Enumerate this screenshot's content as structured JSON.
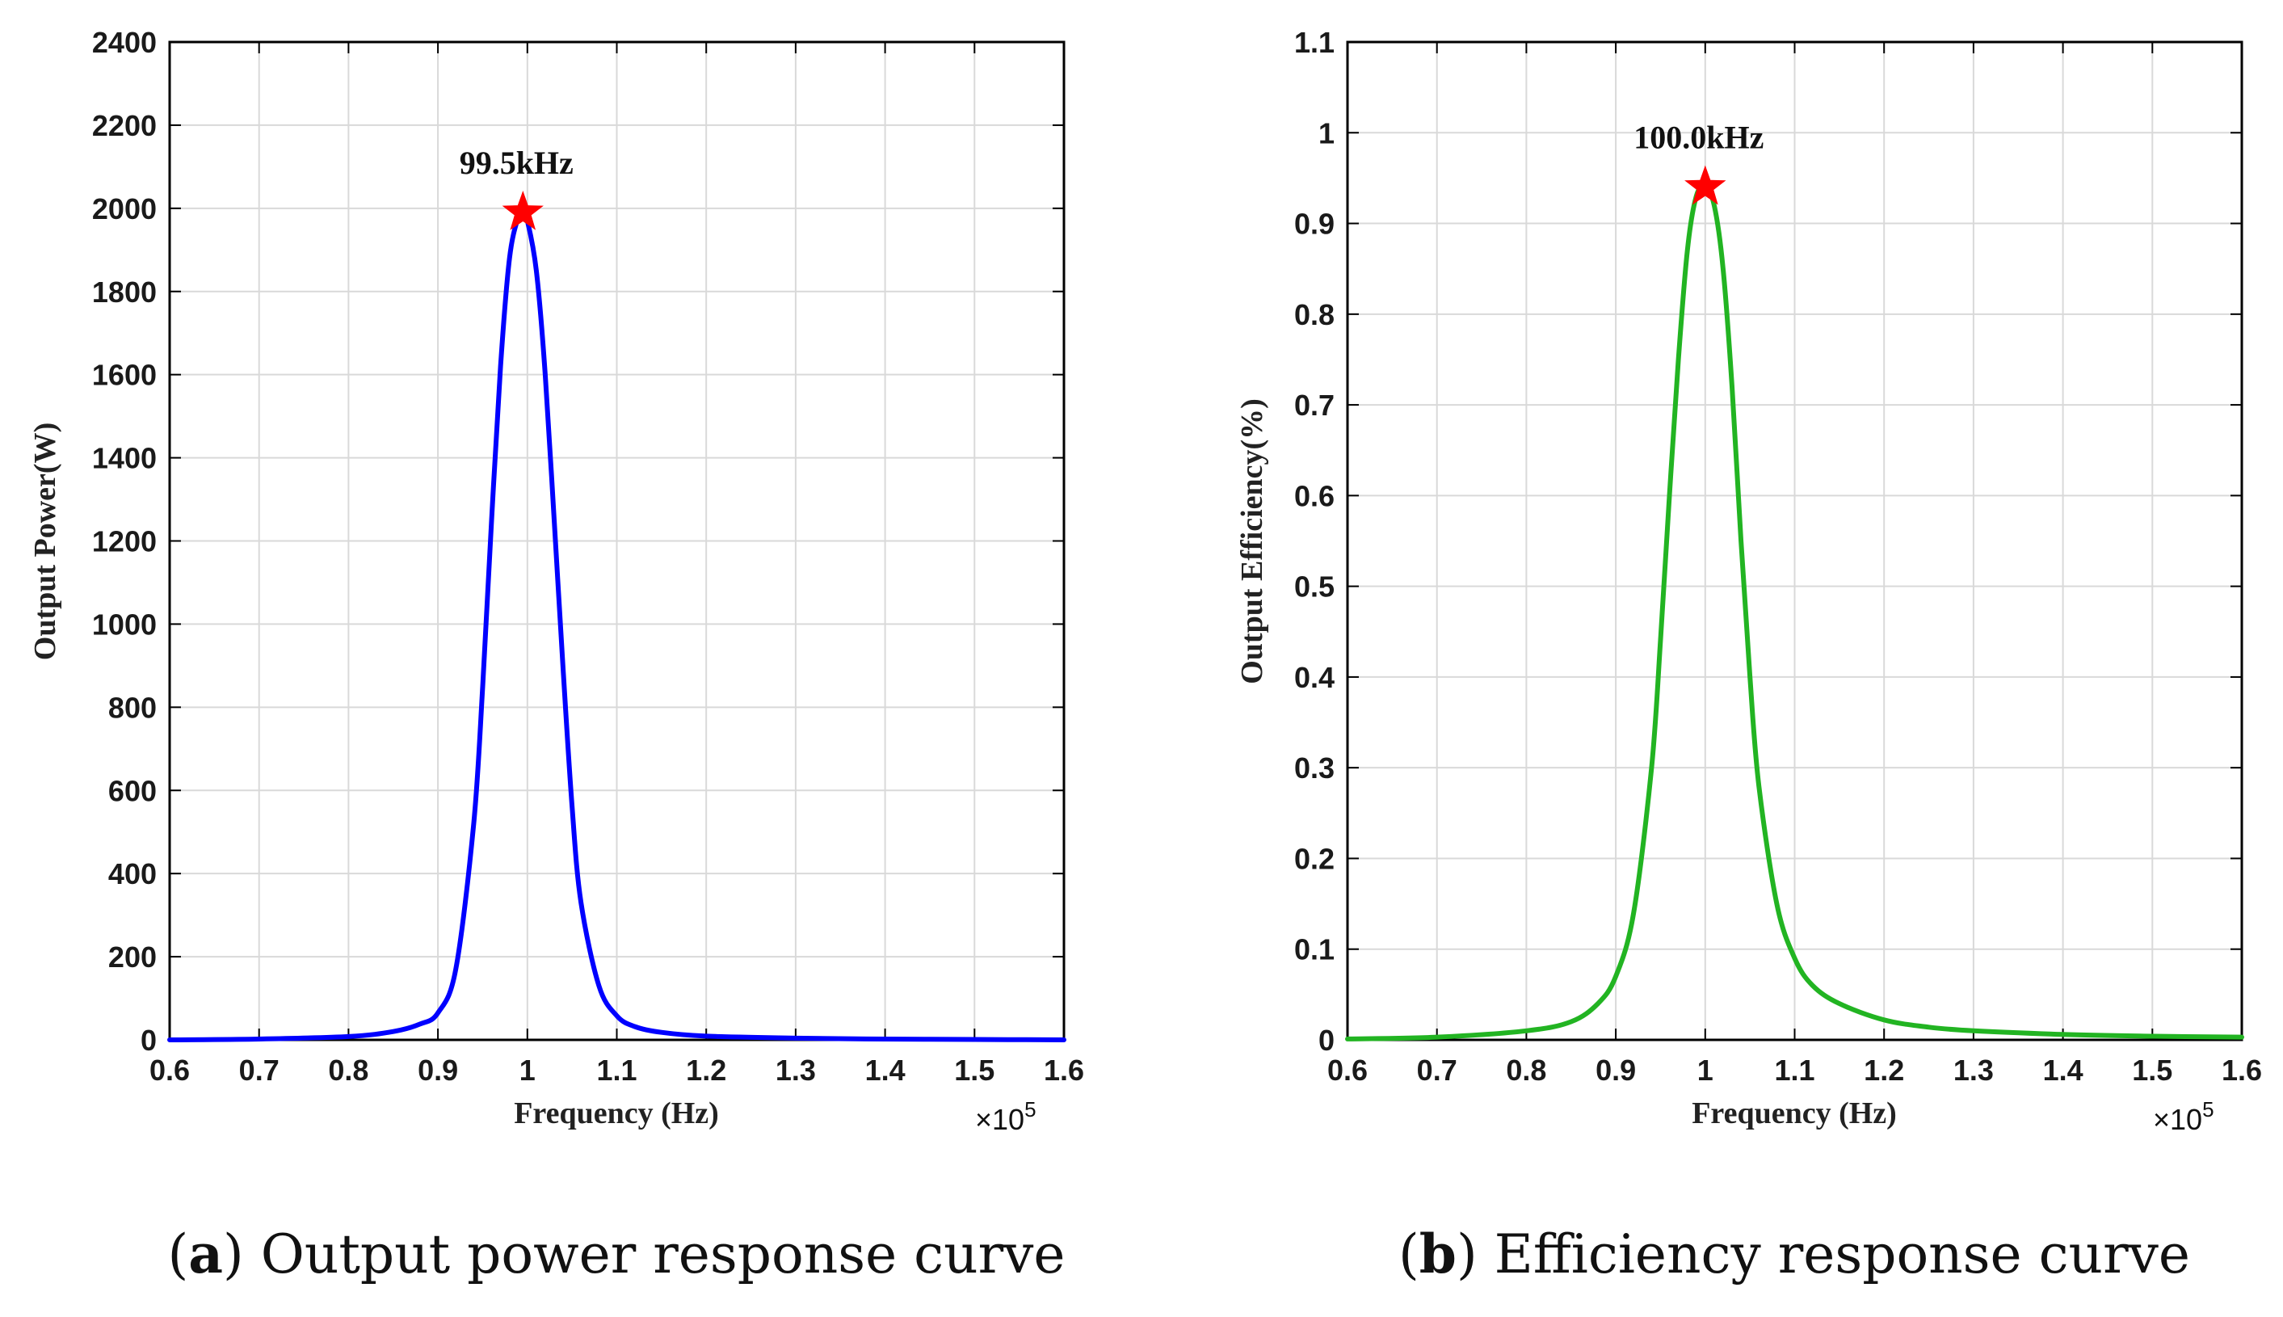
{
  "chart_data": [
    {
      "type": "line",
      "id": "power",
      "title": "",
      "caption_letter": "a",
      "caption_text": "Output power response curve",
      "xlabel": "Frequency (Hz)",
      "ylabel": "Output Power(W)",
      "x_multiplier_label": "×10",
      "x_multiplier_exp": "5",
      "xlim": [
        0.6,
        1.6
      ],
      "ylim": [
        0,
        2400
      ],
      "xticks": [
        0.6,
        0.7,
        0.8,
        0.9,
        1,
        1.1,
        1.2,
        1.3,
        1.4,
        1.5,
        1.6
      ],
      "yticks": [
        0,
        200,
        400,
        600,
        800,
        1000,
        1200,
        1400,
        1600,
        1800,
        2000,
        2200,
        2400
      ],
      "grid": true,
      "series": [
        {
          "name": "Output Power",
          "color": "#0000ff",
          "x": [
            0.6,
            0.7,
            0.8,
            0.85,
            0.88,
            0.9,
            0.92,
            0.94,
            0.95,
            0.96,
            0.97,
            0.98,
            0.99,
            0.995,
            1.0,
            1.01,
            1.02,
            1.03,
            1.04,
            1.05,
            1.06,
            1.08,
            1.1,
            1.12,
            1.15,
            1.2,
            1.3,
            1.4,
            1.5,
            1.6
          ],
          "y": [
            0,
            2,
            8,
            20,
            38,
            65,
            170,
            520,
            850,
            1250,
            1620,
            1880,
            1980,
            1990,
            1970,
            1850,
            1600,
            1250,
            890,
            560,
            330,
            130,
            58,
            32,
            18,
            9,
            4,
            2,
            1,
            0
          ]
        }
      ],
      "peak": {
        "x": 0.995,
        "y": 1990,
        "label": "99.5kHz",
        "marker_color": "#ff0000"
      }
    },
    {
      "type": "line",
      "id": "efficiency",
      "title": "",
      "caption_letter": "b",
      "caption_text": "Efficiency response curve",
      "xlabel": "Frequency (Hz)",
      "ylabel": "Output Efficiency(%)",
      "x_multiplier_label": "×10",
      "x_multiplier_exp": "5",
      "xlim": [
        0.6,
        1.6
      ],
      "ylim": [
        0,
        1.1
      ],
      "xticks": [
        0.6,
        0.7,
        0.8,
        0.9,
        1,
        1.1,
        1.2,
        1.3,
        1.4,
        1.5,
        1.6
      ],
      "yticks": [
        0,
        0.1,
        0.2,
        0.3,
        0.4,
        0.5,
        0.6,
        0.7,
        0.8,
        0.9,
        1,
        1.1
      ],
      "grid": true,
      "series": [
        {
          "name": "Output Efficiency",
          "color": "#22b422",
          "x": [
            0.6,
            0.7,
            0.8,
            0.85,
            0.88,
            0.9,
            0.92,
            0.94,
            0.95,
            0.96,
            0.97,
            0.98,
            0.99,
            1.0,
            1.01,
            1.02,
            1.03,
            1.04,
            1.05,
            1.06,
            1.08,
            1.1,
            1.12,
            1.15,
            1.2,
            1.25,
            1.3,
            1.4,
            1.5,
            1.6
          ],
          "y": [
            0.001,
            0.003,
            0.01,
            0.02,
            0.04,
            0.07,
            0.14,
            0.3,
            0.44,
            0.6,
            0.75,
            0.87,
            0.93,
            0.94,
            0.92,
            0.85,
            0.72,
            0.55,
            0.4,
            0.28,
            0.15,
            0.09,
            0.06,
            0.04,
            0.022,
            0.014,
            0.01,
            0.006,
            0.004,
            0.003
          ]
        }
      ],
      "peak": {
        "x": 1.0,
        "y": 0.94,
        "label": "100.0kHz",
        "marker_color": "#ff0000"
      }
    }
  ]
}
